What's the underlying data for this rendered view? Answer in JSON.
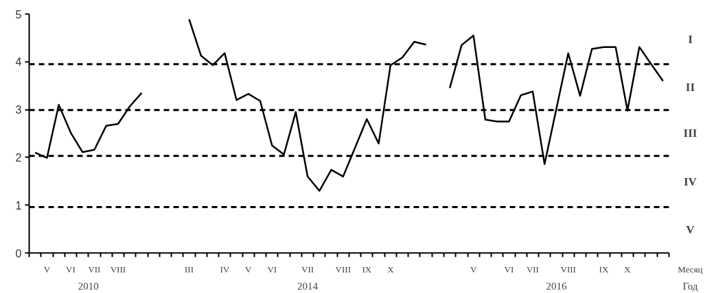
{
  "chart_data": {
    "type": "line",
    "xlabel": "Месяц",
    "categories": [
      null,
      "V",
      null,
      "VI",
      null,
      "VII",
      null,
      "VIII",
      null,
      null,
      null,
      null,
      null,
      "III",
      null,
      null,
      "IV",
      null,
      "V",
      null,
      "VI",
      null,
      null,
      "VII",
      null,
      null,
      "VIII",
      null,
      "IX",
      null,
      "X",
      null,
      null,
      null,
      null,
      null,
      null,
      "V",
      null,
      null,
      "VI",
      null,
      "VII",
      null,
      null,
      "VIII",
      null,
      null,
      "IX",
      null,
      "X",
      null,
      null,
      null
    ],
    "ylim": [
      0,
      5
    ],
    "yticks": [
      0,
      1,
      2,
      3,
      4,
      5
    ],
    "series": [
      {
        "color": "#000000",
        "values": [
          2.1,
          1.99,
          3.1,
          2.52,
          2.11,
          2.16,
          2.66,
          2.7,
          3.07,
          3.35,
          null,
          null,
          null,
          4.89,
          4.13,
          3.93,
          4.18,
          3.2,
          3.33,
          3.18,
          2.25,
          2.06,
          2.95,
          1.6,
          1.3,
          1.74,
          1.6,
          2.2,
          2.8,
          2.29,
          3.93,
          4.09,
          4.42,
          4.36,
          null,
          3.45,
          4.35,
          4.55,
          2.79,
          2.75,
          2.75,
          3.3,
          3.38,
          1.86,
          3.02,
          4.18,
          3.29,
          4.27,
          4.31,
          4.31,
          2.98,
          4.31,
          3.95,
          3.6
        ]
      }
    ],
    "ref_lines": [
      {
        "axis": "y",
        "value": 0.96,
        "color": "#000000",
        "line_style": "dashed"
      },
      {
        "axis": "y",
        "value": 2.03,
        "color": "#000000",
        "line_style": "dashed"
      },
      {
        "axis": "y",
        "value": 2.99,
        "color": "#000000",
        "line_style": "dashed"
      },
      {
        "axis": "y",
        "value": 3.95,
        "color": "#000000",
        "line_style": "dashed"
      }
    ],
    "annotations": [
      "I",
      "II",
      "III",
      "IV",
      "V",
      "2010",
      "2014",
      "2016",
      "Год"
    ],
    "grid": false,
    "marker": "none",
    "line_style": "solid"
  }
}
